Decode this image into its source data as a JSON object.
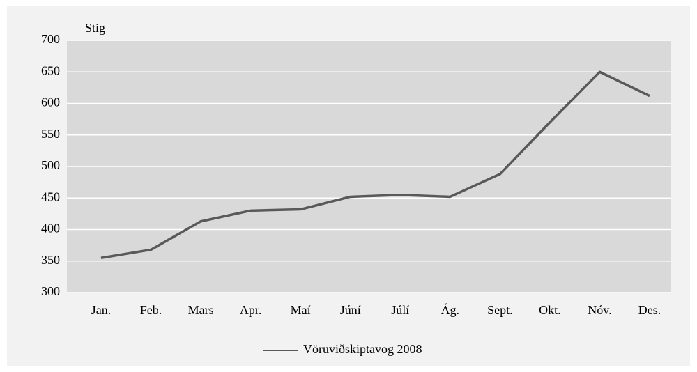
{
  "chart_data": {
    "type": "line",
    "y_axis_label": "Stig",
    "categories": [
      "Jan.",
      "Feb.",
      "Mars",
      "Apr.",
      "Maí",
      "Júní",
      "Júlí",
      "Ág.",
      "Sept.",
      "Okt.",
      "Nóv.",
      "Des."
    ],
    "series": [
      {
        "name": "Vöruviðskiptavog 2008",
        "color": "#595959",
        "values": [
          355,
          368,
          413,
          430,
          432,
          452,
          455,
          452,
          488,
          570,
          650,
          612
        ]
      }
    ],
    "ylim": [
      300,
      700
    ],
    "yticks": [
      300,
      350,
      400,
      450,
      500,
      550,
      600,
      650,
      700
    ],
    "grid": true,
    "legend": "bottom"
  }
}
